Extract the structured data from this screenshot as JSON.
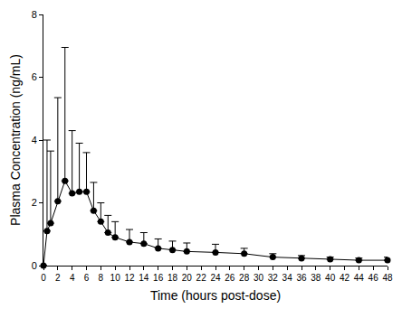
{
  "chart_data": {
    "type": "line",
    "x_label": "Time (hours post-dose)",
    "y_label": "Plasma Concentration (ng/mL)",
    "x": [
      0,
      0.5,
      1,
      2,
      3,
      4,
      5,
      6,
      7,
      8,
      9,
      10,
      12,
      14,
      16,
      18,
      20,
      24,
      28,
      32,
      36,
      40,
      44,
      48
    ],
    "values": [
      0,
      1.1,
      1.35,
      2.05,
      2.7,
      2.3,
      2.35,
      2.35,
      1.75,
      1.4,
      1.05,
      0.9,
      0.75,
      0.7,
      0.55,
      0.5,
      0.45,
      0.42,
      0.38,
      0.27,
      0.23,
      0.2,
      0.17,
      0.17
    ],
    "error_upper": [
      0,
      2.9,
      2.3,
      3.3,
      4.25,
      2.0,
      1.55,
      1.25,
      0.9,
      0.6,
      0.55,
      0.5,
      0.4,
      0.35,
      0.3,
      0.28,
      0.27,
      0.26,
      0.17,
      0.11,
      0.09,
      0.07,
      0.07,
      0.1
    ],
    "color": "#000000",
    "marker": "circle",
    "line_style": "solid",
    "xlim": [
      0,
      48
    ],
    "xticks": [
      0,
      2,
      4,
      6,
      8,
      10,
      12,
      14,
      16,
      18,
      20,
      22,
      24,
      26,
      28,
      30,
      32,
      34,
      36,
      38,
      40,
      42,
      44,
      46,
      48
    ],
    "ylim": [
      0,
      8
    ],
    "yticks": [
      0,
      2,
      4,
      6,
      8
    ],
    "grid": false
  }
}
